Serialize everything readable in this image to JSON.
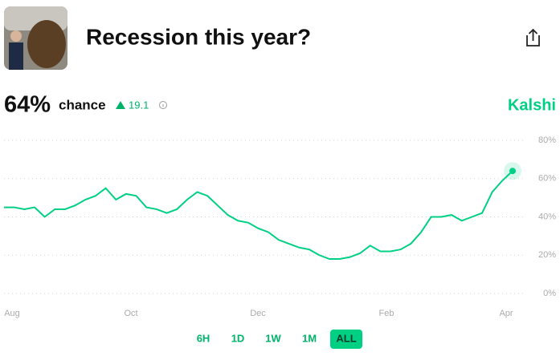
{
  "header": {
    "title": "Recession this year?",
    "brand": "Kalshi"
  },
  "summary": {
    "chance": "64%",
    "chance_label": "chance",
    "change": "19.1"
  },
  "chart_data": {
    "type": "line",
    "series": [
      {
        "name": "Recession this year?",
        "color": "#00d084",
        "values": [
          45,
          45,
          44,
          45,
          40,
          44,
          44,
          46,
          49,
          51,
          55,
          49,
          52,
          51,
          45,
          44,
          42,
          44,
          49,
          53,
          51,
          46,
          41,
          38,
          37,
          34,
          32,
          28,
          26,
          24,
          23,
          20,
          18,
          18,
          19,
          21,
          25,
          22,
          22,
          23,
          26,
          32,
          40,
          40,
          41,
          38,
          40,
          42,
          53,
          59,
          64
        ]
      }
    ],
    "xticks": [
      "Aug",
      "Oct",
      "Dec",
      "Feb",
      "Apr"
    ],
    "ylim": [
      0,
      80
    ],
    "yticks": [
      {
        "value": 0,
        "label": "0%"
      },
      {
        "value": 20,
        "label": "20%"
      },
      {
        "value": 40,
        "label": "40%"
      },
      {
        "value": 60,
        "label": "60%"
      },
      {
        "value": 80,
        "label": "80%"
      }
    ],
    "grid": true
  },
  "range_buttons": [
    "6H",
    "1D",
    "1W",
    "1M",
    "ALL"
  ],
  "selected_range": "ALL"
}
